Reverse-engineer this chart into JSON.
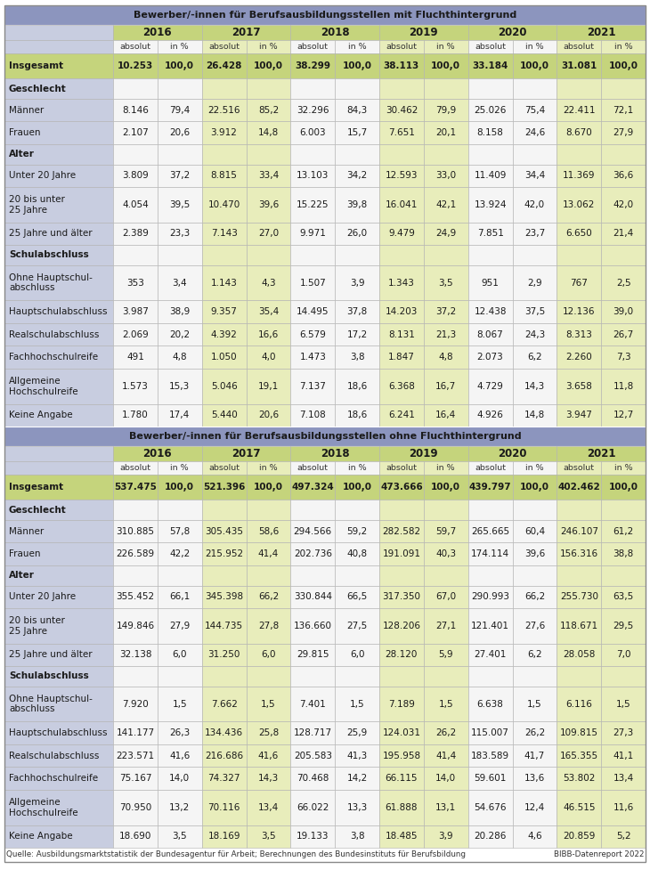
{
  "section1_header": "Bewerber/-innen für Berufsausbildungsstellen mit Fluchthintergrund",
  "section2_header": "Bewerber/-innen für Berufsausbildungsstellen ohne Fluchthintergrund",
  "years": [
    "2016",
    "2017",
    "2018",
    "2019",
    "2020",
    "2021"
  ],
  "source": "Quelle: Ausbildungsmarktstatistik der Bundesagentur für Arbeit; Berechnungen des Bundesinstituts für Berufsbildung",
  "source_right": "BIBB-Datenreport 2022",
  "rows_mit": [
    {
      "label": "Insgesamt",
      "bold": true,
      "green_bg": true,
      "values": [
        "10.253",
        "100,0",
        "26.428",
        "100,0",
        "38.299",
        "100,0",
        "38.113",
        "100,0",
        "33.184",
        "100,0",
        "31.081",
        "100,0"
      ]
    },
    {
      "label": "Geschlecht",
      "bold": true,
      "header": true,
      "values": []
    },
    {
      "label": "Männer",
      "bold": false,
      "values": [
        "8.146",
        "79,4",
        "22.516",
        "85,2",
        "32.296",
        "84,3",
        "30.462",
        "79,9",
        "25.026",
        "75,4",
        "22.411",
        "72,1"
      ]
    },
    {
      "label": "Frauen",
      "bold": false,
      "values": [
        "2.107",
        "20,6",
        "3.912",
        "14,8",
        "6.003",
        "15,7",
        "7.651",
        "20,1",
        "8.158",
        "24,6",
        "8.670",
        "27,9"
      ]
    },
    {
      "label": "Alter",
      "bold": true,
      "header": true,
      "values": []
    },
    {
      "label": "Unter 20 Jahre",
      "bold": false,
      "values": [
        "3.809",
        "37,2",
        "8.815",
        "33,4",
        "13.103",
        "34,2",
        "12.593",
        "33,0",
        "11.409",
        "34,4",
        "11.369",
        "36,6"
      ]
    },
    {
      "label": "20 bis unter\n25 Jahre",
      "bold": false,
      "multiline": true,
      "values": [
        "4.054",
        "39,5",
        "10.470",
        "39,6",
        "15.225",
        "39,8",
        "16.041",
        "42,1",
        "13.924",
        "42,0",
        "13.062",
        "42,0"
      ]
    },
    {
      "label": "25 Jahre und älter",
      "bold": false,
      "values": [
        "2.389",
        "23,3",
        "7.143",
        "27,0",
        "9.971",
        "26,0",
        "9.479",
        "24,9",
        "7.851",
        "23,7",
        "6.650",
        "21,4"
      ]
    },
    {
      "label": "Schulabschluss",
      "bold": true,
      "header": true,
      "values": []
    },
    {
      "label": "Ohne Hauptschul-\nabschluss",
      "bold": false,
      "multiline": true,
      "values": [
        "353",
        "3,4",
        "1.143",
        "4,3",
        "1.507",
        "3,9",
        "1.343",
        "3,5",
        "951",
        "2,9",
        "767",
        "2,5"
      ]
    },
    {
      "label": "Hauptschulabschluss",
      "bold": false,
      "values": [
        "3.987",
        "38,9",
        "9.357",
        "35,4",
        "14.495",
        "37,8",
        "14.203",
        "37,2",
        "12.438",
        "37,5",
        "12.136",
        "39,0"
      ]
    },
    {
      "label": "Realschulabschluss",
      "bold": false,
      "values": [
        "2.069",
        "20,2",
        "4.392",
        "16,6",
        "6.579",
        "17,2",
        "8.131",
        "21,3",
        "8.067",
        "24,3",
        "8.313",
        "26,7"
      ]
    },
    {
      "label": "Fachhochschulreife",
      "bold": false,
      "values": [
        "491",
        "4,8",
        "1.050",
        "4,0",
        "1.473",
        "3,8",
        "1.847",
        "4,8",
        "2.073",
        "6,2",
        "2.260",
        "7,3"
      ]
    },
    {
      "label": "Allgemeine\nHochschulreife",
      "bold": false,
      "multiline": true,
      "values": [
        "1.573",
        "15,3",
        "5.046",
        "19,1",
        "7.137",
        "18,6",
        "6.368",
        "16,7",
        "4.729",
        "14,3",
        "3.658",
        "11,8"
      ]
    },
    {
      "label": "Keine Angabe",
      "bold": false,
      "values": [
        "1.780",
        "17,4",
        "5.440",
        "20,6",
        "7.108",
        "18,6",
        "6.241",
        "16,4",
        "4.926",
        "14,8",
        "3.947",
        "12,7"
      ]
    }
  ],
  "rows_ohne": [
    {
      "label": "Insgesamt",
      "bold": true,
      "green_bg": true,
      "values": [
        "537.475",
        "100,0",
        "521.396",
        "100,0",
        "497.324",
        "100,0",
        "473.666",
        "100,0",
        "439.797",
        "100,0",
        "402.462",
        "100,0"
      ]
    },
    {
      "label": "Geschlecht",
      "bold": true,
      "header": true,
      "values": []
    },
    {
      "label": "Männer",
      "bold": false,
      "values": [
        "310.885",
        "57,8",
        "305.435",
        "58,6",
        "294.566",
        "59,2",
        "282.582",
        "59,7",
        "265.665",
        "60,4",
        "246.107",
        "61,2"
      ]
    },
    {
      "label": "Frauen",
      "bold": false,
      "values": [
        "226.589",
        "42,2",
        "215.952",
        "41,4",
        "202.736",
        "40,8",
        "191.091",
        "40,3",
        "174.114",
        "39,6",
        "156.316",
        "38,8"
      ]
    },
    {
      "label": "Alter",
      "bold": true,
      "header": true,
      "values": []
    },
    {
      "label": "Unter 20 Jahre",
      "bold": false,
      "values": [
        "355.452",
        "66,1",
        "345.398",
        "66,2",
        "330.844",
        "66,5",
        "317.350",
        "67,0",
        "290.993",
        "66,2",
        "255.730",
        "63,5"
      ]
    },
    {
      "label": "20 bis unter\n25 Jahre",
      "bold": false,
      "multiline": true,
      "values": [
        "149.846",
        "27,9",
        "144.735",
        "27,8",
        "136.660",
        "27,5",
        "128.206",
        "27,1",
        "121.401",
        "27,6",
        "118.671",
        "29,5"
      ]
    },
    {
      "label": "25 Jahre und älter",
      "bold": false,
      "values": [
        "32.138",
        "6,0",
        "31.250",
        "6,0",
        "29.815",
        "6,0",
        "28.120",
        "5,9",
        "27.401",
        "6,2",
        "28.058",
        "7,0"
      ]
    },
    {
      "label": "Schulabschluss",
      "bold": true,
      "header": true,
      "values": []
    },
    {
      "label": "Ohne Hauptschul-\nabschluss",
      "bold": false,
      "multiline": true,
      "values": [
        "7.920",
        "1,5",
        "7.662",
        "1,5",
        "7.401",
        "1,5",
        "7.189",
        "1,5",
        "6.638",
        "1,5",
        "6.116",
        "1,5"
      ]
    },
    {
      "label": "Hauptschulabschluss",
      "bold": false,
      "values": [
        "141.177",
        "26,3",
        "134.436",
        "25,8",
        "128.717",
        "25,9",
        "124.031",
        "26,2",
        "115.007",
        "26,2",
        "109.815",
        "27,3"
      ]
    },
    {
      "label": "Realschulabschluss",
      "bold": false,
      "values": [
        "223.571",
        "41,6",
        "216.686",
        "41,6",
        "205.583",
        "41,3",
        "195.958",
        "41,4",
        "183.589",
        "41,7",
        "165.355",
        "41,1"
      ]
    },
    {
      "label": "Fachhochschulreife",
      "bold": false,
      "values": [
        "75.167",
        "14,0",
        "74.327",
        "14,3",
        "70.468",
        "14,2",
        "66.115",
        "14,0",
        "59.601",
        "13,6",
        "53.802",
        "13,4"
      ]
    },
    {
      "label": "Allgemeine\nHochschulreife",
      "bold": false,
      "multiline": true,
      "values": [
        "70.950",
        "13,2",
        "70.116",
        "13,4",
        "66.022",
        "13,3",
        "61.888",
        "13,1",
        "54.676",
        "12,4",
        "46.515",
        "11,6"
      ]
    },
    {
      "label": "Keine Angabe",
      "bold": false,
      "values": [
        "18.690",
        "3,5",
        "18.169",
        "3,5",
        "19.133",
        "3,8",
        "18.485",
        "3,9",
        "20.286",
        "4,6",
        "20.859",
        "5,2"
      ]
    }
  ],
  "colors": {
    "header_blue": "#8c95be",
    "label_col_bg": "#c8cde0",
    "insgesamt_green": "#c5d47c",
    "year_header_green": "#c5d47c",
    "col_header_light": "#dde3aa",
    "data_white": "#f5f5f5",
    "data_green": "#e8edbb",
    "border": "#b0b0b0",
    "text": "#222222",
    "bold_text": "#111111"
  },
  "figsize": [
    7.3,
    9.86
  ],
  "dpi": 100
}
